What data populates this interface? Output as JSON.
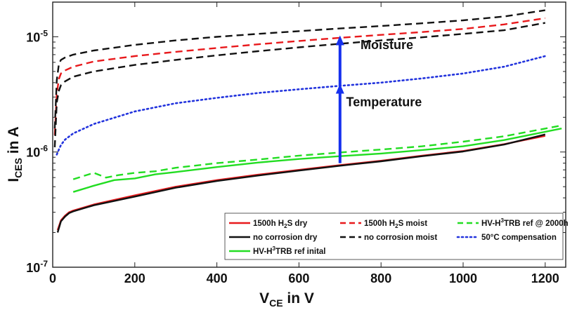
{
  "chart_data": {
    "type": "line",
    "xlabel": {
      "base": "V",
      "sub": "CE",
      "rest": " in V"
    },
    "ylabel": {
      "base": "I",
      "sub": "CES",
      "rest": " in A"
    },
    "xlim": [
      0,
      1250
    ],
    "ylim": [
      1e-07,
      2e-05
    ],
    "yscale": "log",
    "grid": false,
    "legend_position": "bottom-right",
    "x_ticks": [
      0,
      200,
      400,
      600,
      800,
      1000,
      1200
    ],
    "x_tick_labels": [
      "0",
      "200",
      "400",
      "600",
      "800",
      "1000",
      "1200"
    ],
    "y_ticks": [
      1e-07,
      1e-06,
      1e-05
    ],
    "y_tick_labels": [
      {
        "base": "10",
        "exp": "-7"
      },
      {
        "base": "10",
        "exp": "-6"
      },
      {
        "base": "10",
        "exp": "-5"
      }
    ],
    "annotations": [
      {
        "text": "Moisture",
        "x": 750,
        "y": 7.8e-06
      },
      {
        "text": "Temperature",
        "x": 715,
        "y": 2.5e-06
      }
    ],
    "arrows": [
      {
        "x": 700,
        "from": 8e-07,
        "to": 3.8e-06
      },
      {
        "x": 700,
        "from": 3.8e-06,
        "to": 1e-05
      }
    ],
    "series": [
      {
        "name": "1500h H2S dry",
        "legend": {
          "pre": "1500h H",
          "sub": "2",
          "post": "S dry"
        },
        "color": "#e8191c",
        "dash": "solid",
        "x": [
          12,
          20,
          30,
          40,
          50,
          100,
          200,
          300,
          400,
          500,
          600,
          700,
          800,
          900,
          1000,
          1100,
          1200
        ],
        "y": [
          2.1e-07,
          2.55e-07,
          2.8e-07,
          3e-07,
          3.1e-07,
          3.5e-07,
          4.2e-07,
          5e-07,
          5.7e-07,
          6.35e-07,
          7e-07,
          7.7e-07,
          8.4e-07,
          9.3e-07,
          1.02e-06,
          1.17e-06,
          1.38e-06
        ]
      },
      {
        "name": "1500h H2S moist",
        "legend": {
          "pre": "1500h H",
          "sub": "2",
          "post": "S moist"
        },
        "color": "#e8191c",
        "dash": "dashed",
        "x": [
          5,
          10,
          15,
          20,
          30,
          50,
          100,
          200,
          300,
          400,
          500,
          600,
          700,
          800,
          900,
          1000,
          1100,
          1200
        ],
        "y": [
          1.4e-06,
          3.2e-06,
          4.3e-06,
          4.8e-06,
          5.1e-06,
          5.5e-06,
          6.1e-06,
          6.8e-06,
          7.4e-06,
          8e-06,
          8.6e-06,
          9.2e-06,
          9.8e-06,
          1.04e-05,
          1.1e-05,
          1.17e-05,
          1.28e-05,
          1.45e-05
        ]
      },
      {
        "name": "HV-H3TRB ref @ 2000h",
        "legend": {
          "pre": "HV-H",
          "sup": "3",
          "post": "TRB ref @ 2000h"
        },
        "color": "#22dd22",
        "dash": "dashed",
        "x": [
          50,
          100,
          130,
          160,
          200,
          250,
          300,
          400,
          500,
          600,
          700,
          800,
          900,
          1000,
          1100,
          1240
        ],
        "y": [
          5.8e-07,
          6.6e-07,
          6e-07,
          6.3e-07,
          6.6e-07,
          6.8e-07,
          7.3e-07,
          8e-07,
          8.6e-07,
          9.3e-07,
          9.9e-07,
          1.05e-06,
          1.12e-06,
          1.23e-06,
          1.37e-06,
          1.7e-06
        ]
      },
      {
        "name": "no corrosion dry",
        "legend": {
          "pre": "no corrosion dry"
        },
        "color": "#111111",
        "dash": "solid",
        "x": [
          12,
          20,
          30,
          40,
          50,
          100,
          200,
          300,
          400,
          500,
          600,
          700,
          800,
          900,
          1000,
          1100,
          1200
        ],
        "y": [
          2e-07,
          2.5e-07,
          2.75e-07,
          2.95e-07,
          3.05e-07,
          3.45e-07,
          4.1e-07,
          4.9e-07,
          5.6e-07,
          6.25e-07,
          6.9e-07,
          7.6e-07,
          8.3e-07,
          9.2e-07,
          1.01e-06,
          1.16e-06,
          1.42e-06
        ]
      },
      {
        "name": "no corrosion moist (upper)",
        "legend": {
          "pre": "no corrosion moist"
        },
        "color": "#111111",
        "dash": "dashed",
        "x": [
          5,
          10,
          15,
          20,
          30,
          50,
          100,
          200,
          300,
          400,
          500,
          600,
          700,
          800,
          900,
          1000,
          1100,
          1200
        ],
        "y": [
          1.6e-06,
          4.2e-06,
          5.8e-06,
          6.3e-06,
          6.6e-06,
          7e-06,
          7.6e-06,
          8.5e-06,
          9.3e-06,
          1e-05,
          1.06e-05,
          1.12e-05,
          1.18e-05,
          1.24e-05,
          1.31e-05,
          1.39e-05,
          1.5e-05,
          1.7e-05
        ]
      },
      {
        "name": "no corrosion moist (lower)",
        "legend": null,
        "color": "#111111",
        "dash": "dashed",
        "x": [
          5,
          10,
          15,
          20,
          30,
          50,
          100,
          200,
          300,
          400,
          500,
          600,
          700,
          800,
          900,
          1000,
          1100,
          1200
        ],
        "y": [
          1.1e-06,
          2.7e-06,
          3.4e-06,
          3.8e-06,
          4.1e-06,
          4.5e-06,
          5e-06,
          5.7e-06,
          6.3e-06,
          6.9e-06,
          7.5e-06,
          8.1e-06,
          8.7e-06,
          9.3e-06,
          9.9e-06,
          1.06e-05,
          1.14e-05,
          1.32e-05
        ]
      },
      {
        "name": "50°C compensation",
        "legend": {
          "pre": "50°C compensation"
        },
        "color": "#2233dd",
        "dash": "dotted",
        "x": [
          10,
          15,
          20,
          30,
          50,
          100,
          200,
          300,
          400,
          500,
          600,
          700,
          800,
          900,
          1000,
          1100,
          1200
        ],
        "y": [
          9.5e-07,
          1.05e-06,
          1.15e-06,
          1.28e-06,
          1.45e-06,
          1.75e-06,
          2.25e-06,
          2.65e-06,
          2.95e-06,
          3.25e-06,
          3.5e-06,
          3.75e-06,
          4e-06,
          4.35e-06,
          4.8e-06,
          5.5e-06,
          6.8e-06
        ]
      },
      {
        "name": "HV-H3TRB ref inital",
        "legend": {
          "pre": "HV-H",
          "sup": "3",
          "post": "TRB ref inital"
        },
        "color": "#22dd22",
        "dash": "solid",
        "x": [
          50,
          100,
          150,
          200,
          250,
          300,
          400,
          500,
          600,
          700,
          800,
          900,
          1000,
          1100,
          1240
        ],
        "y": [
          4.5e-07,
          5.1e-07,
          5.7e-07,
          5.9e-07,
          6.4e-07,
          6.7e-07,
          7.4e-07,
          8.1e-07,
          8.7e-07,
          9.2e-07,
          9.7e-07,
          1.04e-06,
          1.12e-06,
          1.27e-06,
          1.6e-06
        ]
      }
    ]
  }
}
